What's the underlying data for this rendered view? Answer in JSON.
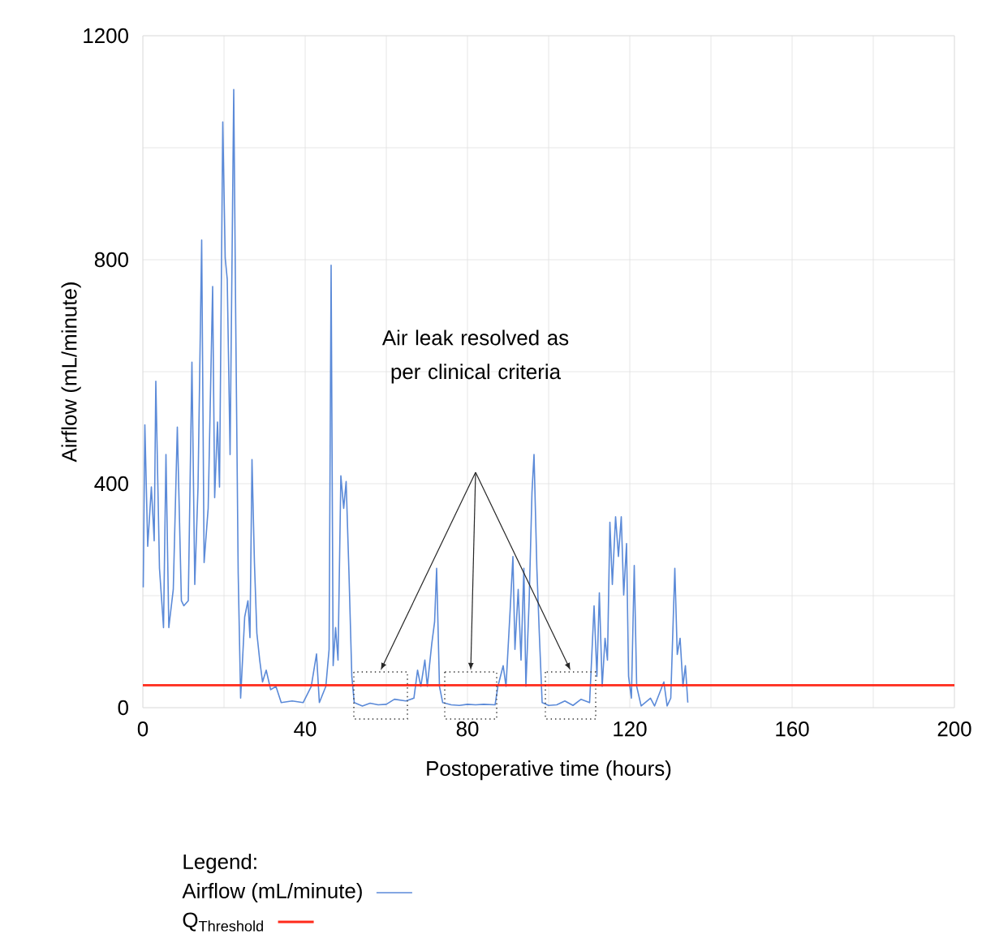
{
  "chart_data": {
    "type": "line",
    "xlabel": "Postoperative time (hours)",
    "ylabel": "Airflow (mL/minute)",
    "legend_title": "Legend:",
    "annotations": [
      "Air leak resolved as per clinical criteria"
    ],
    "xlim": [
      0,
      200
    ],
    "ylim": [
      0,
      1200
    ],
    "xticks": [
      0,
      {
        "value": 20,
        "label": null
      },
      40,
      {
        "value": 60,
        "label": null
      },
      80,
      {
        "value": 100,
        "label": null
      },
      120,
      {
        "value": 140,
        "label": null
      },
      160,
      {
        "value": 180,
        "label": null
      },
      200
    ],
    "yticks": [
      0,
      {
        "value": 200,
        "label": null
      },
      400,
      {
        "value": 600,
        "label": null
      },
      800,
      {
        "value": 1000,
        "label": null
      },
      1200
    ],
    "grid": true,
    "legend": "bottom",
    "series": [
      {
        "name": "Airflow (mL/minute)",
        "color": "#5b8ad8",
        "x": [
          0.1,
          0.5,
          1.2,
          2.1,
          2.8,
          3.2,
          4.1,
          5.1,
          5.7,
          6.4,
          7.5,
          8.5,
          9.5,
          10.1,
          11.2,
          12.1,
          12.8,
          13.6,
          14.5,
          15.1,
          16.1,
          17.2,
          17.7,
          18.4,
          18.9,
          19.7,
          20.3,
          20.8,
          21.5,
          22.4,
          22.9,
          23.5,
          24.1,
          25.1,
          25.9,
          26.4,
          26.9,
          27.5,
          28.1,
          28.8,
          29.5,
          30.4,
          31.5,
          32.8,
          34.1,
          36.8,
          39.5,
          41.5,
          42.8,
          43.5,
          45.1,
          45.9,
          46.4,
          46.9,
          47.5,
          48.1,
          48.8,
          49.5,
          50.1,
          50.8,
          51.5,
          52.1,
          54.1,
          56,
          58,
          60,
          62,
          64.8,
          66.8,
          67.7,
          68.5,
          69.5,
          70.1,
          71.2,
          71.9,
          72.4,
          73.1,
          73.9,
          76,
          78,
          80,
          82,
          84,
          86.8,
          87.5,
          88.8,
          89.5,
          90.5,
          91.2,
          91.7,
          92.5,
          93.2,
          93.9,
          94.4,
          95.2,
          95.9,
          96.4,
          97.1,
          97.7,
          98.4,
          100,
          102,
          104,
          106,
          108,
          110.1,
          111.2,
          111.9,
          112.5,
          113.2,
          113.9,
          114.5,
          115.1,
          115.7,
          116.5,
          117.2,
          117.9,
          118.5,
          119.2,
          119.7,
          120.4,
          121.1,
          121.7,
          122.8,
          125.1,
          126.1,
          128.4,
          129.2,
          130.1,
          131.1,
          131.7,
          132.4,
          133.1,
          133.7,
          134.3
        ],
        "values": [
          215,
          505,
          288,
          394,
          298,
          583,
          249,
          143,
          452,
          143,
          211,
          501,
          191,
          182,
          191,
          617,
          220,
          394,
          835,
          259,
          356,
          752,
          375,
          510,
          394,
          1046,
          803,
          765,
          452,
          1104,
          684,
          240,
          17,
          162,
          191,
          125,
          443,
          259,
          133,
          85,
          46,
          67,
          32,
          38,
          9,
          12,
          9,
          38,
          96,
          9,
          38,
          104,
          790,
          75,
          143,
          85,
          414,
          356,
          404,
          240,
          56,
          9,
          3,
          8,
          5,
          6,
          15,
          12,
          17,
          67,
          38,
          85,
          38,
          114,
          153,
          249,
          38,
          9,
          5,
          4,
          6,
          5,
          6,
          5,
          38,
          75,
          38,
          172,
          270,
          104,
          211,
          85,
          249,
          38,
          191,
          385,
          452,
          249,
          133,
          9,
          4,
          5,
          12,
          4,
          15,
          9,
          182,
          56,
          205,
          38,
          124,
          85,
          331,
          220,
          341,
          270,
          341,
          201,
          293,
          56,
          17,
          254,
          38,
          3,
          17,
          3,
          46,
          3,
          17,
          249,
          95,
          124,
          38,
          75,
          9
        ]
      }
    ],
    "ref_lines": [
      {
        "axis": "y",
        "value": 40,
        "label": "\\mathrm{Q}_{\\mathrm{Threshold}}",
        "color": "#ff2a1a"
      }
    ]
  }
}
